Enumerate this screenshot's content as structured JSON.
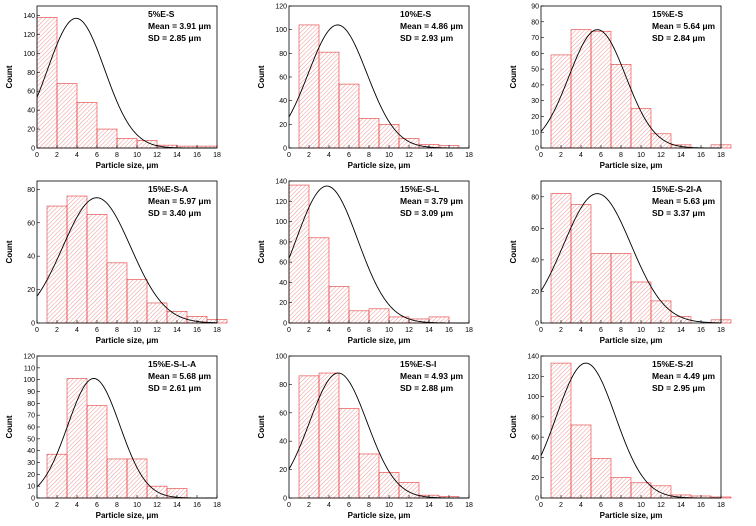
{
  "colors": {
    "bar_stroke": "#e23b3b",
    "hatch": "#e86a6a",
    "curve": "#000000",
    "axis": "#000000"
  },
  "chart_data": [
    {
      "type": "bar",
      "title": "5%E-S",
      "mean": "Mean = 3.91 μm",
      "sd": "SD = 2.85 μm",
      "xlabel": "Particle size, μm",
      "ylabel": "Count",
      "xlim": [
        0,
        18
      ],
      "xticks": [
        0,
        2,
        4,
        6,
        8,
        10,
        12,
        14,
        16,
        18
      ],
      "ylim": [
        0,
        150
      ],
      "yticks": [
        0,
        20,
        40,
        60,
        80,
        100,
        120,
        140
      ],
      "bin_width": 2,
      "bin_starts": [
        0,
        2,
        4,
        6,
        8,
        10,
        12,
        14,
        16
      ],
      "values": [
        138,
        68,
        48,
        20,
        10,
        8,
        3,
        2,
        2
      ],
      "fit": {
        "mu": 3.91,
        "sigma": 2.85,
        "peak": 137
      }
    },
    {
      "type": "bar",
      "title": "10%E-S",
      "mean": "Mean = 4.86 μm",
      "sd": "SD = 2.93 μm",
      "xlabel": "Particle size, μm",
      "ylabel": "Count",
      "xlim": [
        0,
        18
      ],
      "xticks": [
        0,
        2,
        4,
        6,
        8,
        10,
        12,
        14,
        16,
        18
      ],
      "ylim": [
        0,
        120
      ],
      "yticks": [
        0,
        20,
        40,
        60,
        80,
        100,
        120
      ],
      "bin_width": 2,
      "bin_starts": [
        1,
        3,
        5,
        7,
        9,
        11,
        13,
        15
      ],
      "values": [
        104,
        81,
        54,
        25,
        20,
        8,
        3,
        2
      ],
      "fit": {
        "mu": 4.86,
        "sigma": 2.93,
        "peak": 104
      }
    },
    {
      "type": "bar",
      "title": "15%E-S",
      "mean": "Mean = 5.64 μm",
      "sd": "SD = 2.84 μm",
      "xlabel": "Particle size, μm",
      "ylabel": "Count",
      "xlim": [
        0,
        18
      ],
      "xticks": [
        0,
        2,
        4,
        6,
        8,
        10,
        12,
        14,
        16,
        18
      ],
      "ylim": [
        0,
        90
      ],
      "yticks": [
        0,
        10,
        20,
        30,
        40,
        50,
        60,
        70,
        80,
        90
      ],
      "bin_width": 2,
      "bin_starts": [
        1,
        3,
        5,
        7,
        9,
        11,
        13,
        15,
        17
      ],
      "values": [
        59,
        75,
        74,
        53,
        25,
        9,
        2,
        0,
        2
      ],
      "fit": {
        "mu": 5.64,
        "sigma": 2.84,
        "peak": 75
      }
    },
    {
      "type": "bar",
      "title": "15%E-S-A",
      "mean": "Mean = 5.97 μm",
      "sd": "SD = 3.40 μm",
      "xlabel": "Particle size, μm",
      "ylabel": "Count",
      "xlim": [
        0,
        18
      ],
      "xticks": [
        0,
        2,
        4,
        6,
        8,
        10,
        12,
        14,
        16,
        18
      ],
      "ylim": [
        0,
        85
      ],
      "yticks": [
        0,
        20,
        40,
        60,
        80
      ],
      "bin_width": 2,
      "bin_starts": [
        1,
        3,
        5,
        7,
        9,
        11,
        13,
        15,
        17
      ],
      "values": [
        70,
        76,
        65,
        36,
        26,
        12,
        7,
        4,
        2
      ],
      "fit": {
        "mu": 5.97,
        "sigma": 3.4,
        "peak": 75
      }
    },
    {
      "type": "bar",
      "title": "15%E-S-L",
      "mean": "Mean = 3.79 μm",
      "sd": "SD = 3.09 μm",
      "xlabel": "Particle size, μm",
      "ylabel": "Count",
      "xlim": [
        0,
        18
      ],
      "xticks": [
        0,
        2,
        4,
        6,
        8,
        10,
        12,
        14,
        16,
        18
      ],
      "ylim": [
        0,
        140
      ],
      "yticks": [
        0,
        20,
        40,
        60,
        80,
        100,
        120,
        140
      ],
      "bin_width": 2,
      "bin_starts": [
        0,
        2,
        4,
        6,
        8,
        10,
        12,
        14,
        16
      ],
      "values": [
        136,
        84,
        36,
        12,
        14,
        6,
        4,
        6,
        0
      ],
      "fit": {
        "mu": 3.79,
        "sigma": 3.09,
        "peak": 135
      }
    },
    {
      "type": "bar",
      "title": "15%E-S-2I-A",
      "mean": "Mean = 5.63 μm",
      "sd": "SD = 3.37 μm",
      "xlabel": "Particle size, μm",
      "ylabel": "Count",
      "xlim": [
        0,
        18
      ],
      "xticks": [
        0,
        2,
        4,
        6,
        8,
        10,
        12,
        14,
        16,
        18
      ],
      "ylim": [
        0,
        90
      ],
      "yticks": [
        0,
        20,
        40,
        60,
        80
      ],
      "bin_width": 2,
      "bin_starts": [
        1,
        3,
        5,
        7,
        9,
        11,
        13,
        15,
        17
      ],
      "values": [
        82,
        75,
        44,
        44,
        26,
        14,
        4,
        0,
        2
      ],
      "fit": {
        "mu": 5.63,
        "sigma": 3.37,
        "peak": 82
      }
    },
    {
      "type": "bar",
      "title": "15%E-S-L-A",
      "mean": "Mean = 5.68 μm",
      "sd": "SD = 2.61 μm",
      "xlabel": "Particle size, μm",
      "ylabel": "Count",
      "xlim": [
        0,
        18
      ],
      "xticks": [
        0,
        2,
        4,
        6,
        8,
        10,
        12,
        14,
        16,
        18
      ],
      "ylim": [
        0,
        120
      ],
      "yticks": [
        0,
        10,
        20,
        30,
        40,
        50,
        60,
        70,
        80,
        90,
        100,
        110,
        120
      ],
      "bin_width": 2,
      "bin_starts": [
        1,
        3,
        5,
        7,
        9,
        11,
        13
      ],
      "values": [
        37,
        101,
        78,
        33,
        33,
        10,
        8
      ],
      "fit": {
        "mu": 5.68,
        "sigma": 2.61,
        "peak": 101
      }
    },
    {
      "type": "bar",
      "title": "15%E-S-I",
      "mean": "Mean = 4.93 μm",
      "sd": "SD = 2.88 μm",
      "xlabel": "Particle size, μm",
      "ylabel": "Count",
      "xlim": [
        0,
        18
      ],
      "xticks": [
        0,
        2,
        4,
        6,
        8,
        10,
        12,
        14,
        16,
        18
      ],
      "ylim": [
        0,
        100
      ],
      "yticks": [
        0,
        20,
        40,
        60,
        80,
        100
      ],
      "bin_width": 2,
      "bin_starts": [
        1,
        3,
        5,
        7,
        9,
        11,
        13,
        15
      ],
      "values": [
        86,
        88,
        63,
        31,
        18,
        11,
        2,
        1
      ],
      "fit": {
        "mu": 4.93,
        "sigma": 2.88,
        "peak": 88
      }
    },
    {
      "type": "bar",
      "title": "15%E-S-2I",
      "mean": "Mean = 4.49 μm",
      "sd": "SD = 2.95 μm",
      "xlabel": "Particle size, μm",
      "ylabel": "Count",
      "xlim": [
        0,
        18
      ],
      "xticks": [
        0,
        2,
        4,
        6,
        8,
        10,
        12,
        14,
        16,
        18
      ],
      "ylim": [
        0,
        140
      ],
      "yticks": [
        0,
        20,
        40,
        60,
        80,
        100,
        120,
        140
      ],
      "bin_width": 2,
      "bin_starts": [
        1,
        3,
        5,
        7,
        9,
        11,
        13,
        15,
        17
      ],
      "values": [
        133,
        72,
        39,
        20,
        15,
        12,
        3,
        2,
        1
      ],
      "fit": {
        "mu": 4.49,
        "sigma": 2.95,
        "peak": 133
      }
    }
  ]
}
